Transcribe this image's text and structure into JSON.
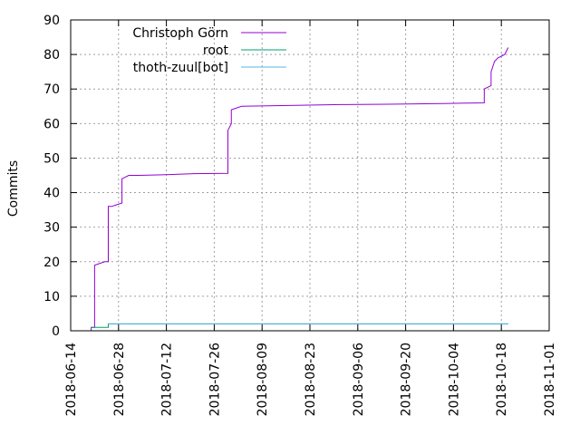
{
  "chart_data": {
    "type": "line",
    "title": "",
    "xlabel": "",
    "ylabel": "Commits",
    "xlim": [
      "2018-06-14",
      "2018-11-01"
    ],
    "ylim": [
      0,
      90
    ],
    "x_ticks": [
      "2018-06-14",
      "2018-06-28",
      "2018-07-12",
      "2018-07-26",
      "2018-08-09",
      "2018-08-23",
      "2018-09-06",
      "2018-09-20",
      "2018-10-04",
      "2018-10-18",
      "2018-11-01"
    ],
    "y_ticks": [
      0,
      10,
      20,
      30,
      40,
      50,
      60,
      70,
      80,
      90
    ],
    "grid": true,
    "legend_position": "top-left",
    "series": [
      {
        "name": "Christoph Görn",
        "color": "#9400d3",
        "points": [
          [
            "2018-06-20",
            0
          ],
          [
            "2018-06-20",
            1
          ],
          [
            "2018-06-21",
            1
          ],
          [
            "2018-06-21",
            19
          ],
          [
            "2018-06-24",
            20
          ],
          [
            "2018-06-25",
            20
          ],
          [
            "2018-06-25",
            36
          ],
          [
            "2018-06-26",
            36
          ],
          [
            "2018-06-29",
            37
          ],
          [
            "2018-06-29",
            44
          ],
          [
            "2018-07-01",
            45
          ],
          [
            "2018-07-04",
            45
          ],
          [
            "2018-07-12",
            45.2
          ],
          [
            "2018-07-20",
            45.5
          ],
          [
            "2018-07-30",
            45.6
          ],
          [
            "2018-07-30",
            58
          ],
          [
            "2018-07-31",
            60
          ],
          [
            "2018-07-31",
            64
          ],
          [
            "2018-08-03",
            65
          ],
          [
            "2018-08-15",
            65.2
          ],
          [
            "2018-09-01",
            65.5
          ],
          [
            "2018-09-15",
            65.6
          ],
          [
            "2018-10-01",
            65.8
          ],
          [
            "2018-10-13",
            66
          ],
          [
            "2018-10-13",
            70
          ],
          [
            "2018-10-15",
            71
          ],
          [
            "2018-10-15",
            75
          ],
          [
            "2018-10-16",
            78
          ],
          [
            "2018-10-17",
            79
          ],
          [
            "2018-10-19",
            80
          ],
          [
            "2018-10-20",
            82
          ]
        ]
      },
      {
        "name": "root",
        "color": "#009e73",
        "points": [
          [
            "2018-06-20",
            1
          ],
          [
            "2018-06-25",
            1
          ],
          [
            "2018-06-25",
            2
          ],
          [
            "2018-10-20",
            2
          ]
        ]
      },
      {
        "name": "thoth-zuul[bot]",
        "color": "#56b4e9",
        "points": [
          [
            "2018-06-25",
            2
          ],
          [
            "2018-10-20",
            2
          ]
        ]
      }
    ]
  }
}
